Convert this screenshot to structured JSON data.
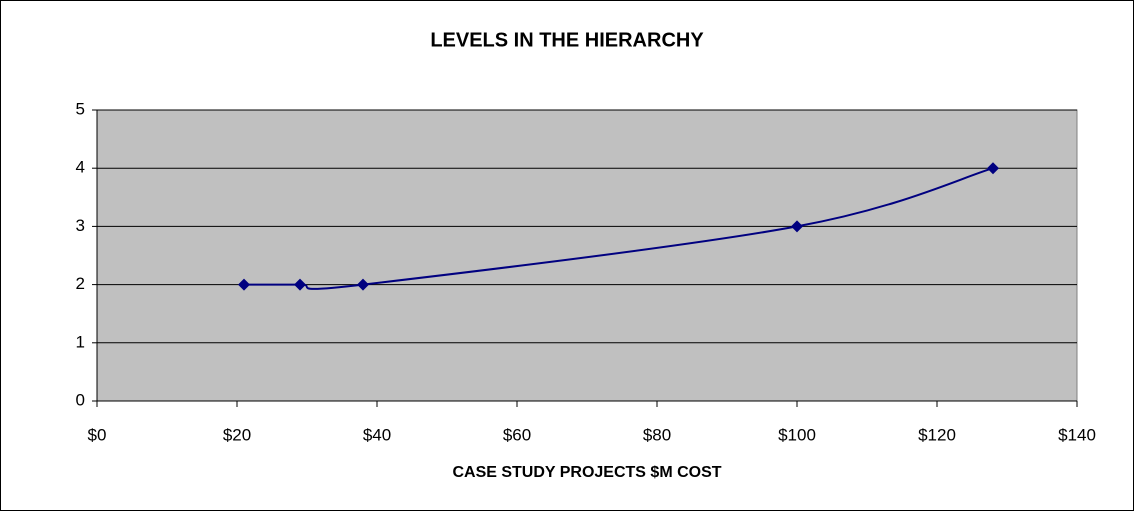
{
  "chart_data": {
    "type": "line",
    "title": "LEVELS IN THE HIERARCHY",
    "x_label": "CASE STUDY PROJECTS $M COST",
    "x": [
      21,
      29,
      38,
      100,
      128
    ],
    "series": [
      {
        "color": "#000080",
        "values": [
          2,
          2,
          2,
          3,
          4
        ]
      }
    ],
    "smooth": true,
    "marker": "diamond",
    "xlim": [
      0,
      140
    ],
    "xticks": [
      {
        "value": 0,
        "label": "$0"
      },
      {
        "value": 20,
        "label": "$20"
      },
      {
        "value": 40,
        "label": "$40"
      },
      {
        "value": 60,
        "label": "$60"
      },
      {
        "value": 80,
        "label": "$80"
      },
      {
        "value": 100,
        "label": "$100"
      },
      {
        "value": 120,
        "label": "$120"
      },
      {
        "value": 140,
        "label": "$140"
      }
    ],
    "ylim": [
      0,
      5
    ],
    "yticks": [
      0,
      1,
      2,
      3,
      4,
      5
    ],
    "grid": true,
    "plot_background": "#c0c0c0"
  }
}
